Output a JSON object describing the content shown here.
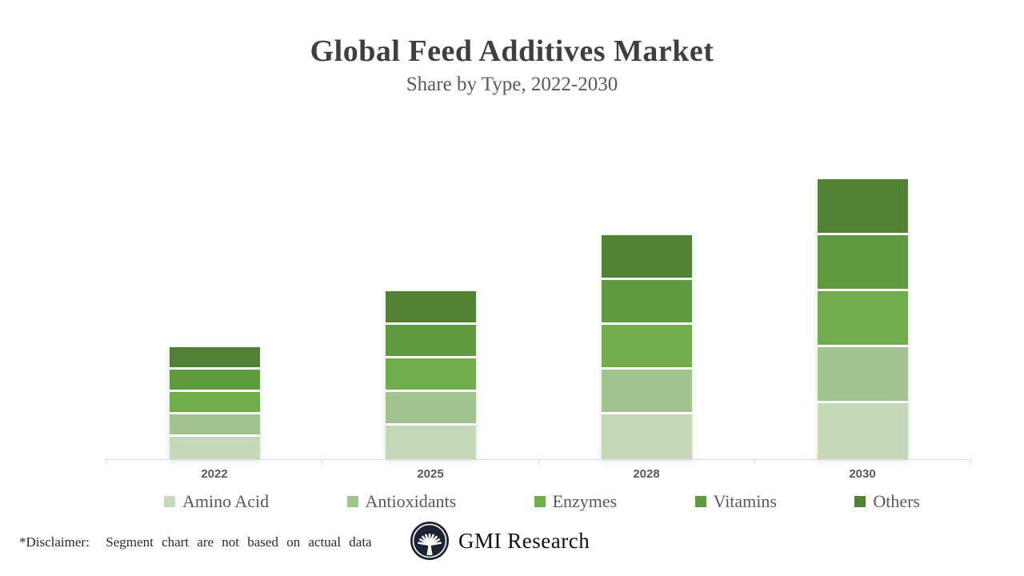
{
  "header": {
    "title": "Global Feed Additives Market",
    "subtitle": "Share by Type, 2022-2030"
  },
  "chart_data": {
    "type": "bar",
    "stacked": true,
    "title": "Global Feed Additives Market",
    "subtitle": "Share by Type, 2022-2030",
    "categories": [
      "2022",
      "2025",
      "2028",
      "2030"
    ],
    "series": [
      {
        "name": "Amino Acid",
        "color": "#c5d9b8",
        "values": [
          4,
          6,
          8,
          10
        ]
      },
      {
        "name": "Antioxidants",
        "color": "#a1c390",
        "values": [
          4,
          6,
          8,
          10
        ]
      },
      {
        "name": "Enzymes",
        "color": "#70ae4b",
        "values": [
          4,
          6,
          8,
          10
        ]
      },
      {
        "name": "Vitamins",
        "color": "#609a40",
        "values": [
          4,
          6,
          8,
          10
        ]
      },
      {
        "name": "Others",
        "color": "#538134",
        "values": [
          4,
          6,
          8,
          10
        ]
      }
    ],
    "totals": [
      20,
      30,
      40,
      50
    ],
    "units": "relative share (illustrative)",
    "xlabel": "",
    "ylabel": "",
    "y_axis_shown": false,
    "gridlines": false,
    "legend_position": "bottom",
    "axis_color": "#d9d9d9",
    "note": "five equal segments per bar; bar totals grow 2:3:4:5"
  },
  "footer": {
    "disclaimer": "*Disclaimer:  Segment chart are not based on actual data",
    "brand": "GMI Research"
  },
  "colors": {
    "title_text": "#3f3f3f",
    "secondary_text": "#595959",
    "axis_line": "#d9d9d9",
    "logo_navy": "#1b2433"
  }
}
